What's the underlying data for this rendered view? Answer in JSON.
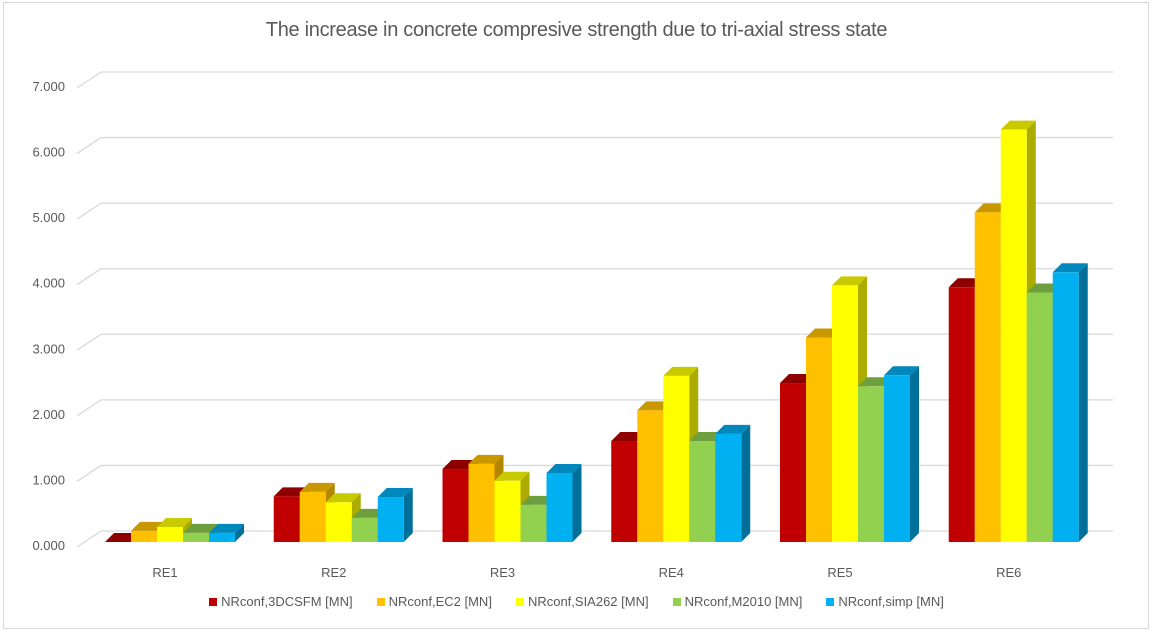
{
  "chart_data": {
    "type": "bar",
    "subtype": "3d-clustered-column",
    "title": "The increase in concrete compresive strength due to tri-axial stress state",
    "xlabel": "",
    "ylabel": "",
    "categories": [
      "RE1",
      "RE2",
      "RE3",
      "RE4",
      "RE5",
      "RE6"
    ],
    "ylim": [
      0,
      7
    ],
    "yticks": [
      0,
      1,
      2,
      3,
      4,
      5,
      6,
      7
    ],
    "ytick_labels": [
      "0.000",
      "1.000",
      "2.000",
      "3.000",
      "4.000",
      "5.000",
      "6.000",
      "7.000"
    ],
    "grid": true,
    "legend_position": "bottom",
    "series": [
      {
        "name": "NRconf,3DCSFM [MN]",
        "color": "#C00000",
        "top_color": "#8E0000",
        "side_color": "#7A0000",
        "values": [
          0.0,
          0.7,
          1.12,
          1.55,
          2.44,
          3.91
        ]
      },
      {
        "name": "NRconf,EC2 [MN]",
        "color": "#FFC000",
        "top_color": "#C99700",
        "side_color": "#B38600",
        "values": [
          0.17,
          0.77,
          1.2,
          2.02,
          3.14,
          5.06
        ]
      },
      {
        "name": "NRconf,SIA262 [MN]",
        "color": "#FFFF00",
        "top_color": "#C9C900",
        "side_color": "#ABAB00",
        "values": [
          0.23,
          0.61,
          0.94,
          2.55,
          3.94,
          6.33
        ]
      },
      {
        "name": "NRconf,M2010 [MN]",
        "color": "#92D050",
        "top_color": "#6E9F3E",
        "side_color": "#5F8A35",
        "values": [
          0.14,
          0.37,
          0.57,
          1.55,
          2.39,
          3.83
        ]
      },
      {
        "name": "NRconf,simp [MN]",
        "color": "#00B0F0",
        "top_color": "#0088BC",
        "side_color": "#00709A",
        "values": [
          0.14,
          0.69,
          1.06,
          1.66,
          2.56,
          4.14
        ]
      }
    ]
  }
}
